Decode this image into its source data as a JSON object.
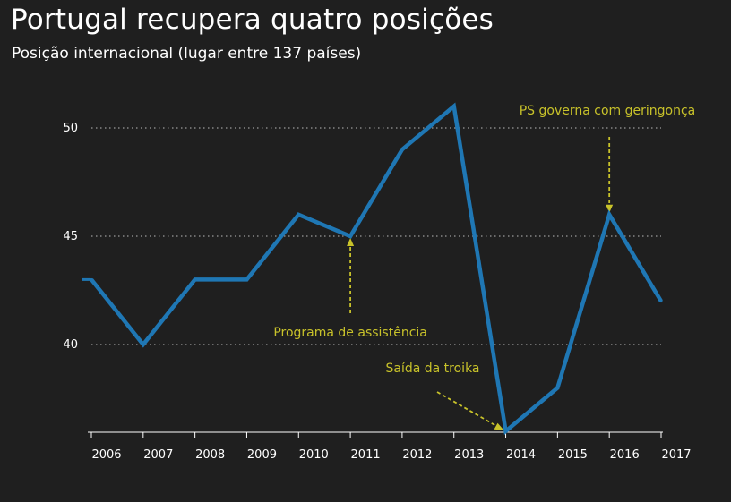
{
  "title": "Portugal recupera quatro posições",
  "subtitle": "Posição internacional (lugar entre 137 países)",
  "colors": {
    "background": "#1f1f1f",
    "line": "#1f77b4",
    "annotation": "#c8c22a",
    "text": "#ffffff",
    "grid": "#9a9a9a"
  },
  "chart_data": {
    "type": "line",
    "x": [
      2006,
      2007,
      2008,
      2009,
      2010,
      2011,
      2012,
      2013,
      2014,
      2015,
      2016,
      2017
    ],
    "series": [
      {
        "values": [
          43,
          40,
          43,
          43,
          46,
          45,
          49,
          51,
          36,
          38,
          46,
          42
        ]
      }
    ],
    "xlabel": "",
    "ylabel": "",
    "xticks": [
      "2006",
      "2007",
      "2008",
      "2009",
      "2010",
      "2011",
      "2012",
      "2013",
      "2014",
      "2015",
      "2016",
      "2017"
    ],
    "yticks": [
      "40",
      "45",
      "50"
    ],
    "ylim": [
      36,
      52
    ],
    "grid": "horizontal-dotted",
    "legend": "none",
    "annotations": [
      {
        "text": "Programa de assistência",
        "x": 2011,
        "y": 45,
        "arrow": "vertical-up"
      },
      {
        "text": "Saída da troika",
        "x": 2014,
        "y": 36,
        "arrow": "diagonal"
      },
      {
        "text": "PS governa com geringonça",
        "x": 2016,
        "y": 46,
        "arrow": "vertical-down"
      }
    ]
  }
}
